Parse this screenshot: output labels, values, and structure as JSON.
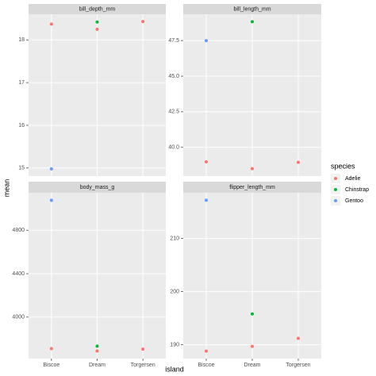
{
  "x_label": "island",
  "y_label": "mean",
  "legend_title": "species",
  "chart_data": [
    {
      "type": "scatter",
      "title": "bill_depth_mm",
      "categories": [
        "Biscoe",
        "Dream",
        "Torgersen"
      ],
      "series": [
        {
          "name": "Adelie",
          "color": "#f8766d",
          "values": [
            18.37,
            18.25,
            18.43
          ]
        },
        {
          "name": "Chinstrap",
          "color": "#00ba38",
          "values": [
            null,
            18.42,
            null
          ]
        },
        {
          "name": "Gentoo",
          "color": "#619cff",
          "values": [
            14.98,
            null,
            null
          ]
        }
      ],
      "ylim": [
        14.81,
        18.6
      ],
      "yticks": [
        15,
        16,
        17,
        18
      ],
      "grid": true
    },
    {
      "type": "scatter",
      "title": "bill_length_mm",
      "categories": [
        "Biscoe",
        "Dream",
        "Torgersen"
      ],
      "series": [
        {
          "name": "Adelie",
          "color": "#f8766d",
          "values": [
            38.98,
            38.5,
            38.95
          ]
        },
        {
          "name": "Chinstrap",
          "color": "#00ba38",
          "values": [
            null,
            48.83,
            null
          ]
        },
        {
          "name": "Gentoo",
          "color": "#619cff",
          "values": [
            47.5,
            null,
            null
          ]
        }
      ],
      "ylim": [
        37.98,
        49.35
      ],
      "yticks": [
        {
          "value": 40,
          "label": "40.0"
        },
        42.5,
        {
          "value": 45,
          "label": "45.0"
        },
        47.5
      ],
      "grid": true
    },
    {
      "type": "scatter",
      "title": "body_mass_g",
      "categories": [
        "Biscoe",
        "Dream",
        "Torgersen"
      ],
      "series": [
        {
          "name": "Adelie",
          "color": "#f8766d",
          "values": [
            3710,
            3688,
            3706
          ]
        },
        {
          "name": "Chinstrap",
          "color": "#00ba38",
          "values": [
            null,
            3733,
            null
          ]
        },
        {
          "name": "Gentoo",
          "color": "#619cff",
          "values": [
            5076,
            null,
            null
          ]
        }
      ],
      "ylim": [
        3619,
        5145
      ],
      "yticks": [
        4000,
        4400,
        4800
      ],
      "grid": true
    },
    {
      "type": "scatter",
      "title": "flipper_length_mm",
      "categories": [
        "Biscoe",
        "Dream",
        "Torgersen"
      ],
      "series": [
        {
          "name": "Adelie",
          "color": "#f8766d",
          "values": [
            188.8,
            189.7,
            191.2
          ]
        },
        {
          "name": "Chinstrap",
          "color": "#00ba38",
          "values": [
            null,
            195.8,
            null
          ]
        },
        {
          "name": "Gentoo",
          "color": "#619cff",
          "values": [
            217.2,
            null,
            null
          ]
        }
      ],
      "ylim": [
        187.4,
        218.6
      ],
      "yticks": [
        190,
        200,
        210
      ],
      "grid": true
    }
  ]
}
